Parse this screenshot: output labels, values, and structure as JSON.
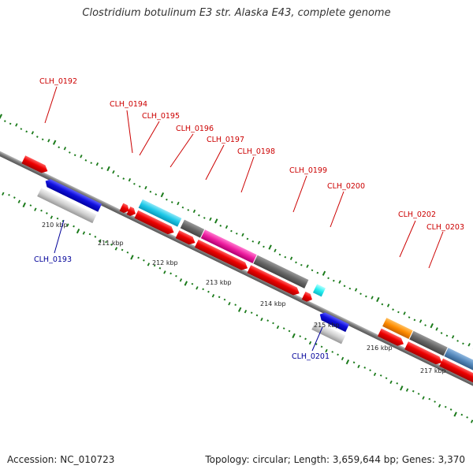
{
  "title": "Clostridium botulinum E3 str. Alaska E43, complete genome",
  "footer": {
    "accession": "Accession: NC_010723",
    "summary": "Topology: circular; Length: 3,659,644 bp; Genes: 3,370"
  },
  "colors": {
    "forward_label": "#cc0000",
    "reverse_label": "#000099",
    "cds": "#ee0000",
    "ruler_dots": "#1a7a1a",
    "backbone": "#777777"
  },
  "ticks": [
    {
      "label": "210 kbp"
    },
    {
      "label": "211 kbp"
    },
    {
      "label": "212 kbp"
    },
    {
      "label": "213 kbp"
    },
    {
      "label": "214 kbp"
    },
    {
      "label": "215 kbp"
    },
    {
      "label": "216 kbp"
    },
    {
      "label": "217 kbp"
    }
  ],
  "genes": [
    {
      "locus": "CLH_0192",
      "strand": "+",
      "color": "#ee0000"
    },
    {
      "locus": "CLH_0193",
      "strand": "-",
      "color": "#1010dd"
    },
    {
      "locus": "CLH_0194",
      "strand": "+",
      "color": "#ee0000"
    },
    {
      "locus": "CLH_0195",
      "strand": "+",
      "color": "#1ec8e8"
    },
    {
      "locus": "CLH_0196",
      "strand": "+",
      "color": "#666666"
    },
    {
      "locus": "CLH_0197",
      "strand": "+",
      "color": "#ee1ea0"
    },
    {
      "locus": "CLH_0198",
      "strand": "+",
      "color": "#666666"
    },
    {
      "locus": "CLH_0199",
      "strand": "+",
      "color": "#ee0000"
    },
    {
      "locus": "CLH_0200",
      "strand": "+",
      "color": "#22eeee"
    },
    {
      "locus": "CLH_0201",
      "strand": "-",
      "color": "#1010dd"
    },
    {
      "locus": "CLH_0202",
      "strand": "+",
      "color": "#ff8c00"
    },
    {
      "locus": "CLH_0203",
      "strand": "+",
      "color": "#666666"
    }
  ]
}
